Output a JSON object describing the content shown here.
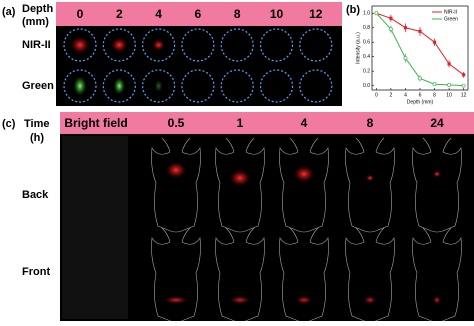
{
  "panel_a": {
    "label": "(a)",
    "header": [
      "Depth",
      "(mm)"
    ],
    "columns": [
      "0",
      "2",
      "4",
      "6",
      "8",
      "10",
      "12"
    ],
    "rows": [
      "NIR-II",
      "Green"
    ]
  },
  "chart_data": {
    "type": "line",
    "label": "(b)",
    "xlabel": "Depth (mm)",
    "ylabel": "Intensity (a.u.)",
    "x": [
      0,
      2,
      4,
      6,
      8,
      10,
      12
    ],
    "series": [
      {
        "name": "NIR-II",
        "color": "#e8202a",
        "values": [
          1.0,
          0.93,
          0.8,
          0.75,
          0.6,
          0.3,
          0.15
        ],
        "errors": [
          0.02,
          0.05,
          0.06,
          0.06,
          0.05,
          0.05,
          0.04
        ]
      },
      {
        "name": "Green",
        "color": "#3cb44b",
        "values": [
          1.0,
          0.78,
          0.38,
          0.1,
          0.02,
          0.01,
          0.0
        ],
        "errors": [
          0.02,
          0.05,
          0.06,
          0.04,
          0.02,
          0.01,
          0.01
        ]
      }
    ],
    "xlim": [
      -0.6,
      12.6
    ],
    "ylim": [
      -0.06,
      1.1
    ],
    "xticks": [
      0,
      2,
      4,
      6,
      8,
      10,
      12
    ],
    "yticks": [
      {
        "value": 0,
        "label": "0.0"
      },
      {
        "value": 0.2,
        "label": "0.2"
      },
      {
        "value": 0.4,
        "label": "0.4"
      },
      {
        "value": 0.6,
        "label": "0.6"
      },
      {
        "value": 0.8,
        "label": "0.8"
      },
      {
        "value": 1.0,
        "label": "1.0"
      }
    ],
    "legend": "upper right"
  },
  "panel_c": {
    "label": "(c)",
    "header": [
      "Time",
      "(h)"
    ],
    "columns": [
      "Bright field",
      "0.5",
      "1",
      "4",
      "8",
      "24"
    ],
    "rows": [
      "Back",
      "Front"
    ]
  }
}
